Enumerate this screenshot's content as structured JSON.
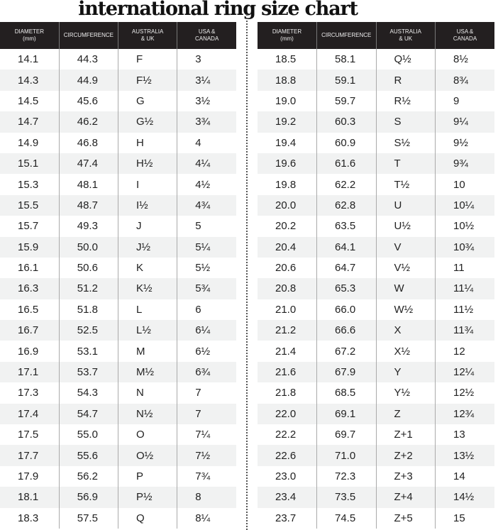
{
  "title": "international ring size chart",
  "columns": [
    "DIAMETER\n(mm)",
    "CIRCUMFERENCE",
    "AUSTRALIA\n& UK",
    "USA &\nCANADA"
  ],
  "left_rows": [
    [
      "14.1",
      "44.3",
      "F",
      "3"
    ],
    [
      "14.3",
      "44.9",
      "F½",
      "3¼"
    ],
    [
      "14.5",
      "45.6",
      "G",
      "3½"
    ],
    [
      "14.7",
      "46.2",
      "G½",
      "3¾"
    ],
    [
      "14.9",
      "46.8",
      "H",
      "4"
    ],
    [
      "15.1",
      "47.4",
      "H½",
      "4¼"
    ],
    [
      "15.3",
      "48.1",
      "I",
      "4½"
    ],
    [
      "15.5",
      "48.7",
      "I½",
      "4¾"
    ],
    [
      "15.7",
      "49.3",
      "J",
      "5"
    ],
    [
      "15.9",
      "50.0",
      "J½",
      "5¼"
    ],
    [
      "16.1",
      "50.6",
      "K",
      "5½"
    ],
    [
      "16.3",
      "51.2",
      "K½",
      "5¾"
    ],
    [
      "16.5",
      "51.8",
      "L",
      "6"
    ],
    [
      "16.7",
      "52.5",
      "L½",
      "6¼"
    ],
    [
      "16.9",
      "53.1",
      "M",
      "6½"
    ],
    [
      "17.1",
      "53.7",
      "M½",
      "6¾"
    ],
    [
      "17.3",
      "54.3",
      "N",
      "7"
    ],
    [
      "17.4",
      "54.7",
      "N½",
      "7"
    ],
    [
      "17.5",
      "55.0",
      "O",
      "7¼"
    ],
    [
      "17.7",
      "55.6",
      "O½",
      "7½"
    ],
    [
      "17.9",
      "56.2",
      "P",
      "7¾"
    ],
    [
      "18.1",
      "56.9",
      "P½",
      "8"
    ],
    [
      "18.3",
      "57.5",
      "Q",
      "8¼"
    ]
  ],
  "right_rows": [
    [
      "18.5",
      "58.1",
      "Q½",
      "8½"
    ],
    [
      "18.8",
      "59.1",
      "R",
      "8¾"
    ],
    [
      "19.0",
      "59.7",
      "R½",
      "9"
    ],
    [
      "19.2",
      "60.3",
      "S",
      "9¼"
    ],
    [
      "19.4",
      "60.9",
      "S½",
      "9½"
    ],
    [
      "19.6",
      "61.6",
      "T",
      "9¾"
    ],
    [
      "19.8",
      "62.2",
      "T½",
      "10"
    ],
    [
      "20.0",
      "62.8",
      "U",
      "10¼"
    ],
    [
      "20.2",
      "63.5",
      "U½",
      "10½"
    ],
    [
      "20.4",
      "64.1",
      "V",
      "10¾"
    ],
    [
      "20.6",
      "64.7",
      "V½",
      "11"
    ],
    [
      "20.8",
      "65.3",
      "W",
      "11¼"
    ],
    [
      "21.0",
      "66.0",
      "W½",
      "11½"
    ],
    [
      "21.2",
      "66.6",
      "X",
      "11¾"
    ],
    [
      "21.4",
      "67.2",
      "X½",
      "12"
    ],
    [
      "21.6",
      "67.9",
      "Y",
      "12¼"
    ],
    [
      "21.8",
      "68.5",
      "Y½",
      "12½"
    ],
    [
      "22.0",
      "69.1",
      "Z",
      "12¾"
    ],
    [
      "22.2",
      "69.7",
      "Z+1",
      "13"
    ],
    [
      "22.6",
      "71.0",
      "Z+2",
      "13½"
    ],
    [
      "23.0",
      "72.3",
      "Z+3",
      "14"
    ],
    [
      "23.4",
      "73.5",
      "Z+4",
      "14½"
    ],
    [
      "23.7",
      "74.5",
      "Z+5",
      "15"
    ]
  ],
  "colors": {
    "header_bg": "#231f20",
    "alt_row": "#f1f2f2"
  }
}
